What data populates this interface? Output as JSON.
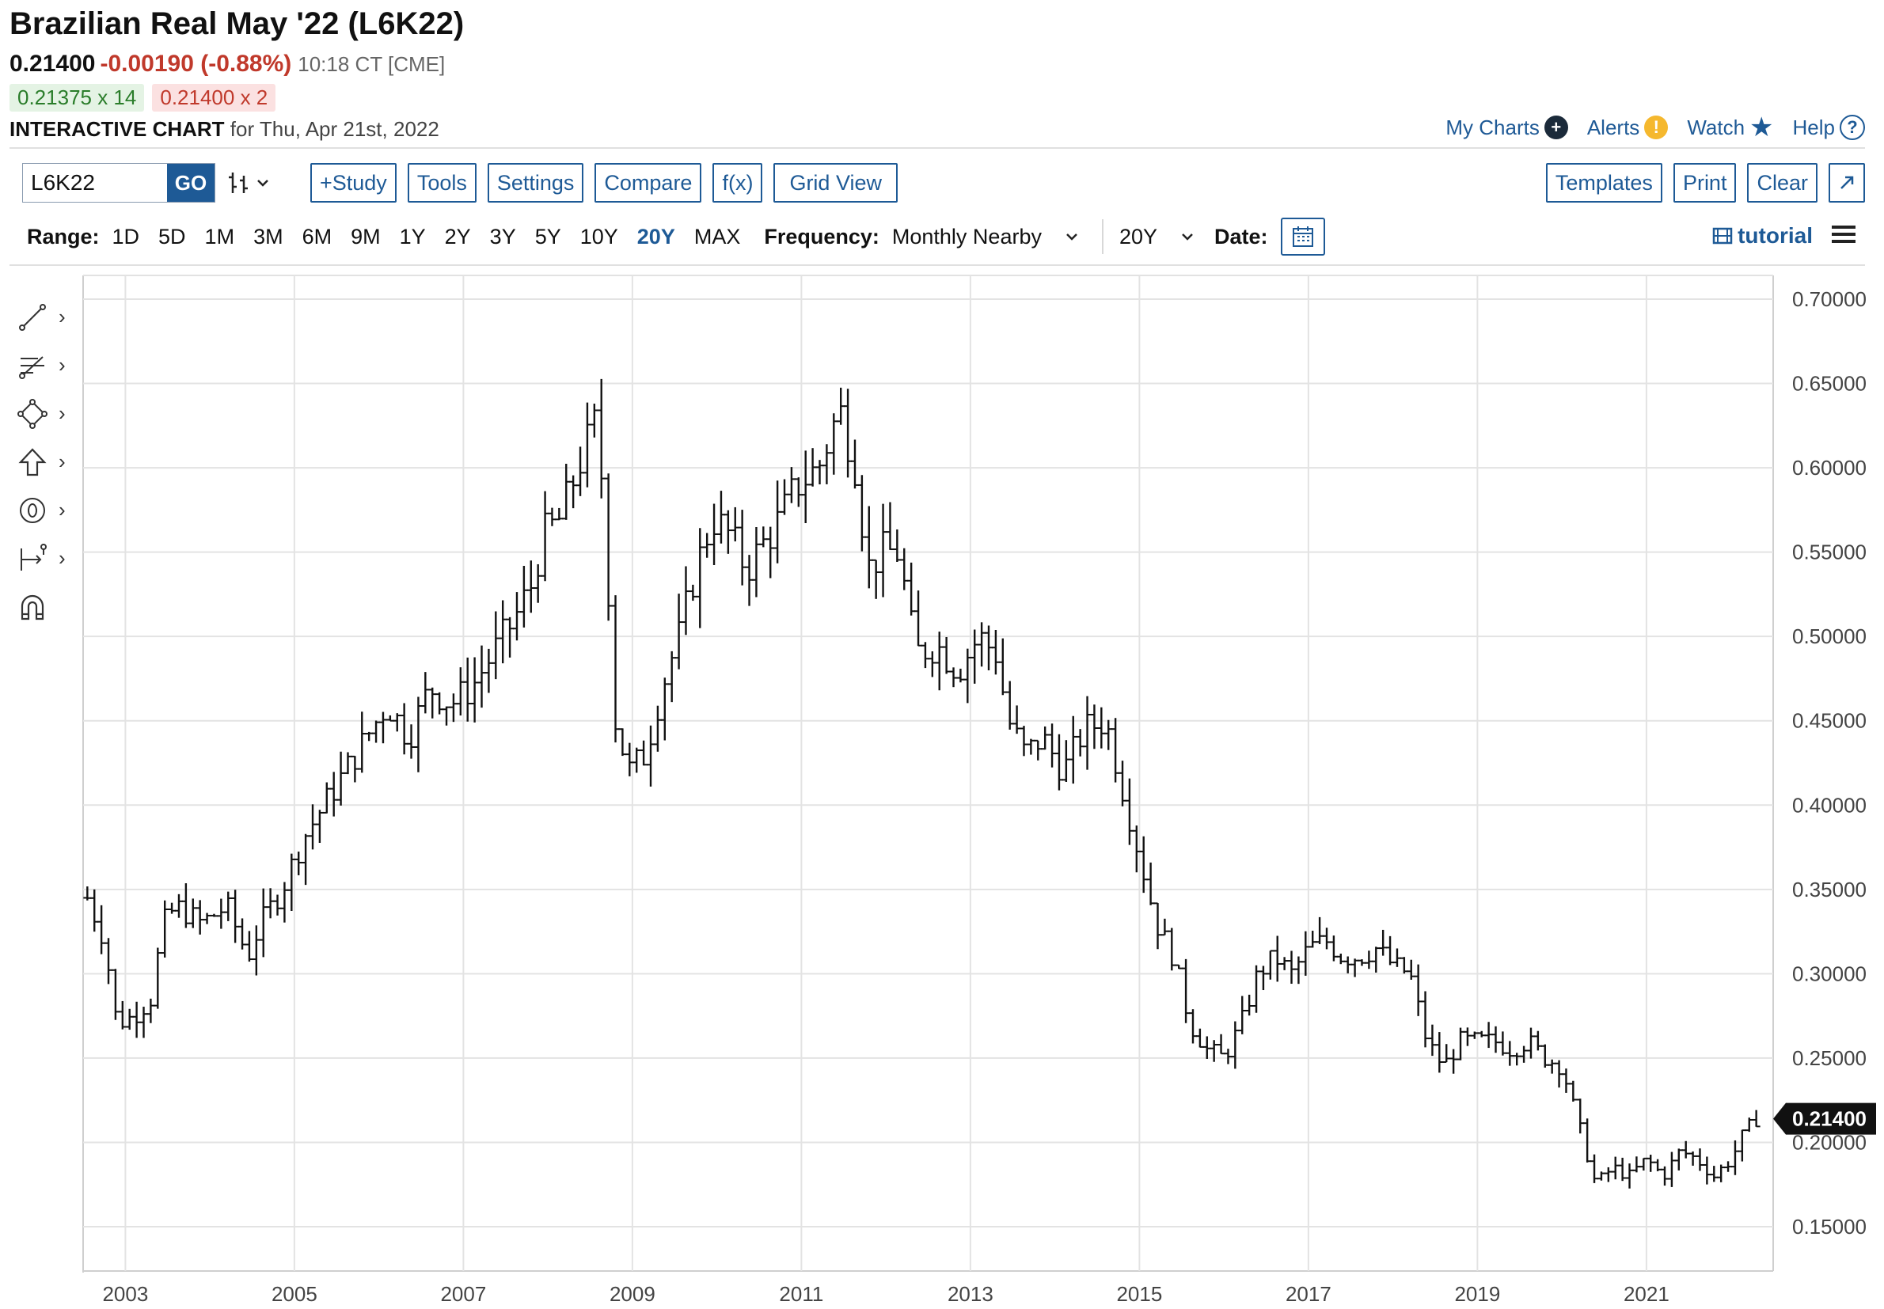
{
  "header": {
    "title": "Brazilian Real May '22 (L6K22)",
    "last": "0.21400",
    "change": "-0.00190 (-0.88%)",
    "time": "10:18 CT [CME]",
    "bid": "0.21375 x 14",
    "ask": "0.21400 x 2",
    "chart_label": "INTERACTIVE CHART",
    "chart_for": "for Thu, Apr 21st, 2022"
  },
  "toplinks": {
    "my_charts": "My Charts",
    "alerts": "Alerts",
    "watch": "Watch",
    "help": "Help"
  },
  "toolbar": {
    "symbol": "L6K22",
    "go": "GO",
    "study": "+Study",
    "tools": "Tools",
    "settings": "Settings",
    "compare": "Compare",
    "fx": "f(x)",
    "grid_view": "Grid View",
    "templates": "Templates",
    "print": "Print",
    "clear": "Clear",
    "expand_icon": "expand-icon"
  },
  "rangebar": {
    "range_label": "Range:",
    "ranges": [
      "1D",
      "5D",
      "1M",
      "3M",
      "6M",
      "9M",
      "1Y",
      "2Y",
      "3Y",
      "5Y",
      "10Y",
      "20Y",
      "MAX"
    ],
    "active_range": "20Y",
    "frequency_label": "Frequency:",
    "frequency": "Monthly Nearby",
    "period": "20Y",
    "date_label": "Date:",
    "tutorial": "tutorial"
  },
  "drawing_tools": [
    "line-tool-icon",
    "fib-tool-icon",
    "shape-tool-icon",
    "arrow-tool-icon",
    "text-tool-icon",
    "measure-tool-icon",
    "magnet-icon"
  ],
  "colors": {
    "accent": "#1e5a96",
    "down": "#c0392b",
    "up": "#2a7d2a",
    "bars": "#111111"
  },
  "chart_data": {
    "type": "ohlc",
    "ylim": [
      0.15,
      0.7
    ],
    "y_ticks": [
      "0.70000",
      "0.65000",
      "0.60000",
      "0.55000",
      "0.50000",
      "0.45000",
      "0.40000",
      "0.35000",
      "0.30000",
      "0.25000",
      "0.20000",
      "0.15000"
    ],
    "x_ticks": [
      "2003",
      "2005",
      "2007",
      "2009",
      "2011",
      "2013",
      "2015",
      "2017",
      "2019",
      "2021"
    ],
    "last_price_label": "0.21400",
    "grid": true,
    "anchors": [
      [
        2002.55,
        0.345
      ],
      [
        2002.75,
        0.32
      ],
      [
        2002.9,
        0.27
      ],
      [
        2003.1,
        0.275
      ],
      [
        2003.3,
        0.285
      ],
      [
        2003.45,
        0.33
      ],
      [
        2003.6,
        0.34
      ],
      [
        2003.9,
        0.33
      ],
      [
        2004.2,
        0.34
      ],
      [
        2004.45,
        0.31
      ],
      [
        2004.6,
        0.33
      ],
      [
        2004.85,
        0.35
      ],
      [
        2005.1,
        0.38
      ],
      [
        2005.35,
        0.4
      ],
      [
        2005.6,
        0.42
      ],
      [
        2005.85,
        0.44
      ],
      [
        2006.1,
        0.46
      ],
      [
        2006.35,
        0.44
      ],
      [
        2006.6,
        0.47
      ],
      [
        2006.85,
        0.46
      ],
      [
        2007.1,
        0.47
      ],
      [
        2007.35,
        0.49
      ],
      [
        2007.6,
        0.51
      ],
      [
        2007.8,
        0.53
      ],
      [
        2007.95,
        0.56
      ],
      [
        2008.15,
        0.57
      ],
      [
        2008.35,
        0.6
      ],
      [
        2008.55,
        0.625
      ],
      [
        2008.65,
        0.59
      ],
      [
        2008.8,
        0.45
      ],
      [
        2008.95,
        0.42
      ],
      [
        2009.15,
        0.43
      ],
      [
        2009.35,
        0.47
      ],
      [
        2009.55,
        0.5
      ],
      [
        2009.75,
        0.54
      ],
      [
        2009.95,
        0.57
      ],
      [
        2010.15,
        0.56
      ],
      [
        2010.35,
        0.54
      ],
      [
        2010.55,
        0.555
      ],
      [
        2010.75,
        0.57
      ],
      [
        2010.95,
        0.59
      ],
      [
        2011.2,
        0.6
      ],
      [
        2011.45,
        0.635
      ],
      [
        2011.65,
        0.6
      ],
      [
        2011.78,
        0.54
      ],
      [
        2011.95,
        0.55
      ],
      [
        2012.15,
        0.55
      ],
      [
        2012.35,
        0.49
      ],
      [
        2012.6,
        0.495
      ],
      [
        2012.85,
        0.48
      ],
      [
        2013.1,
        0.5
      ],
      [
        2013.3,
        0.49
      ],
      [
        2013.45,
        0.45
      ],
      [
        2013.65,
        0.43
      ],
      [
        2013.85,
        0.44
      ],
      [
        2014.1,
        0.42
      ],
      [
        2014.35,
        0.445
      ],
      [
        2014.6,
        0.45
      ],
      [
        2014.8,
        0.41
      ],
      [
        2015.0,
        0.37
      ],
      [
        2015.2,
        0.33
      ],
      [
        2015.4,
        0.31
      ],
      [
        2015.6,
        0.27
      ],
      [
        2015.8,
        0.255
      ],
      [
        2016.0,
        0.25
      ],
      [
        2016.2,
        0.27
      ],
      [
        2016.4,
        0.3
      ],
      [
        2016.6,
        0.31
      ],
      [
        2016.8,
        0.3
      ],
      [
        2017.0,
        0.315
      ],
      [
        2017.2,
        0.32
      ],
      [
        2017.4,
        0.31
      ],
      [
        2017.6,
        0.31
      ],
      [
        2017.8,
        0.315
      ],
      [
        2018.0,
        0.305
      ],
      [
        2018.2,
        0.3
      ],
      [
        2018.4,
        0.26
      ],
      [
        2018.6,
        0.245
      ],
      [
        2018.8,
        0.26
      ],
      [
        2019.0,
        0.26
      ],
      [
        2019.2,
        0.26
      ],
      [
        2019.4,
        0.255
      ],
      [
        2019.6,
        0.26
      ],
      [
        2019.8,
        0.25
      ],
      [
        2020.0,
        0.245
      ],
      [
        2020.2,
        0.21
      ],
      [
        2020.4,
        0.175
      ],
      [
        2020.6,
        0.185
      ],
      [
        2020.8,
        0.18
      ],
      [
        2021.0,
        0.19
      ],
      [
        2021.2,
        0.18
      ],
      [
        2021.4,
        0.195
      ],
      [
        2021.6,
        0.19
      ],
      [
        2021.8,
        0.18
      ],
      [
        2022.0,
        0.19
      ],
      [
        2022.15,
        0.205
      ],
      [
        2022.3,
        0.214
      ]
    ]
  }
}
